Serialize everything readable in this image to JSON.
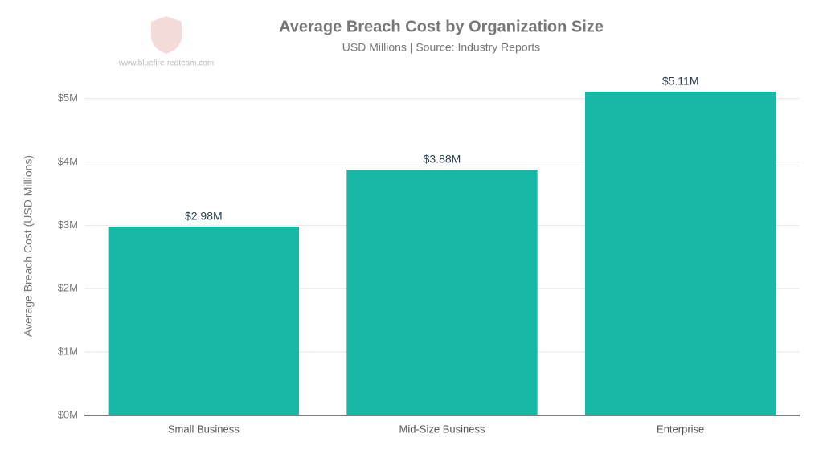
{
  "chart_data": {
    "type": "bar",
    "title": "Average Breach Cost by Organization Size",
    "subtitle": "USD Millions | Source: Industry Reports",
    "watermark": "www.bluefire-redteam.com",
    "y_label": "Average Breach Cost (USD Millions)",
    "categories": [
      "Small Business",
      "Mid-Size Business",
      "Enterprise"
    ],
    "values": [
      2.98,
      3.88,
      5.11
    ],
    "value_labels": [
      "$2.98M",
      "$3.88M",
      "$5.11M"
    ],
    "color": "#17b8a6",
    "ylim": [
      0,
      5.3
    ],
    "yticks": [
      {
        "value": 0,
        "label": "$0M"
      },
      {
        "value": 1,
        "label": "$1M"
      },
      {
        "value": 2,
        "label": "$2M"
      },
      {
        "value": 3,
        "label": "$3M"
      },
      {
        "value": 4,
        "label": "$4M"
      },
      {
        "value": 5,
        "label": "$5M"
      }
    ],
    "grid": true
  }
}
